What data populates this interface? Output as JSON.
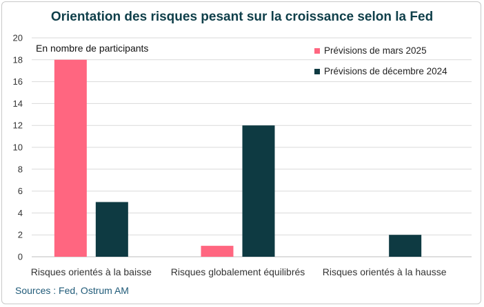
{
  "chart_data": {
    "type": "bar",
    "title": "Orientation des risques pesant sur la croissance selon la Fed",
    "subtitle": "En nombre de participants",
    "xlabel": "",
    "ylabel": "",
    "ylim": [
      0,
      20
    ],
    "yticks": [
      0,
      2,
      4,
      6,
      8,
      10,
      12,
      14,
      16,
      18,
      20
    ],
    "grid": true,
    "legend_position": "top-right",
    "categories": [
      "Risques orientés à la baisse",
      "Risques globalement équilibrés",
      "Risques orientés à la hausse"
    ],
    "series": [
      {
        "name": "Prévisions de mars 2025",
        "color": "#ff6680",
        "values": [
          18,
          1,
          0
        ]
      },
      {
        "name": "Prévisions de décembre 2024",
        "color": "#0e3a42",
        "values": [
          5,
          12,
          2
        ]
      }
    ],
    "source": "Sources : Fed, Ostrum AM"
  }
}
